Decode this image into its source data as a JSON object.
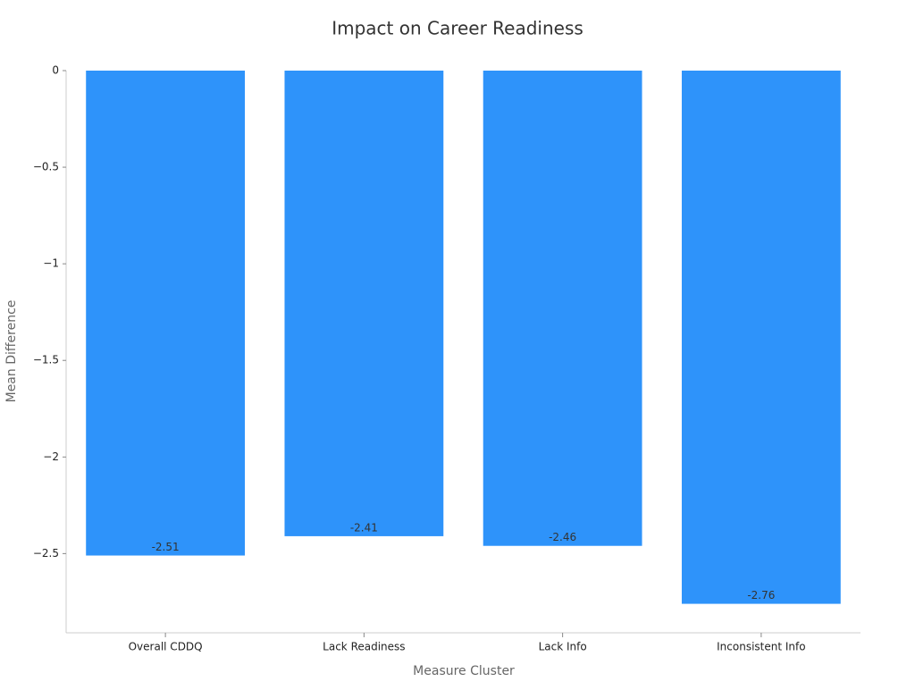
{
  "chart_data": {
    "type": "bar",
    "title": "Impact on Career Readiness",
    "x_label": "Measure Cluster",
    "y_label": "Mean Difference",
    "categories": [
      "Overall CDDQ",
      "Lack Readiness",
      "Lack Info",
      "Inconsistent Info"
    ],
    "values": [
      -2.51,
      -2.41,
      -2.46,
      -2.76
    ],
    "color": "#2e93fa",
    "ylim": [
      -2.91,
      0
    ],
    "yticks": [
      0,
      {
        "value": -0.5,
        "label": "−0.5"
      },
      {
        "value": -1,
        "label": "−1"
      },
      {
        "value": -1.5,
        "label": "−1.5"
      },
      {
        "value": -2,
        "label": "−2"
      },
      {
        "value": -2.5,
        "label": "−2.5"
      }
    ],
    "grid": false
  }
}
